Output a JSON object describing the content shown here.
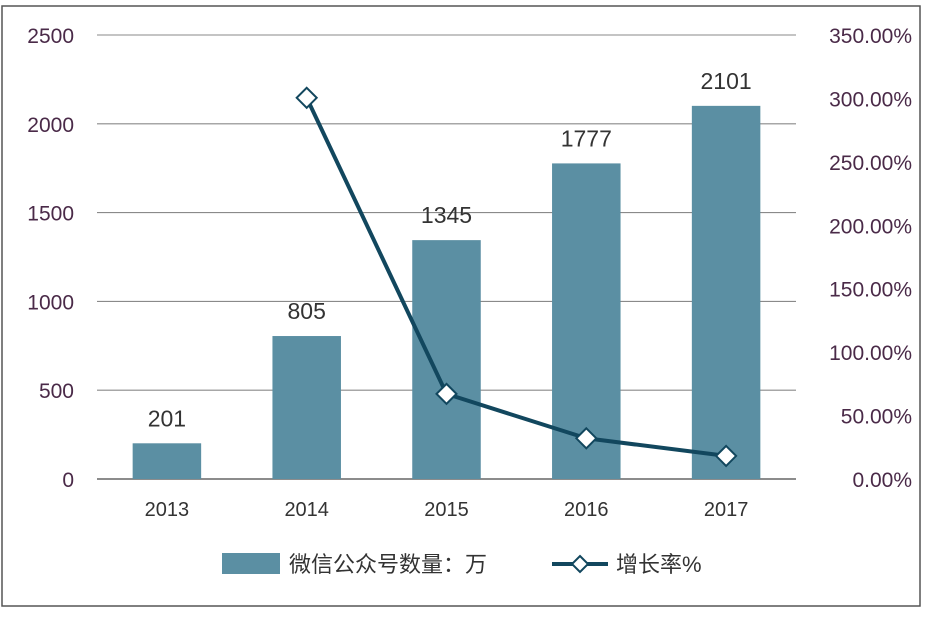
{
  "chart_data": {
    "type": "bar",
    "categories": [
      "2013",
      "2014",
      "2015",
      "2016",
      "2017"
    ],
    "series": [
      {
        "name": "微信公众号数量：万",
        "type": "bar",
        "axis": "left",
        "values": [
          201,
          805,
          1345,
          1777,
          2101
        ],
        "data_labels": [
          "201",
          "805",
          "1345",
          "1777",
          "2101"
        ],
        "color": "#5b8fa3"
      },
      {
        "name": "增长率%",
        "type": "line",
        "axis": "right",
        "values": [
          null,
          300.5,
          67.1,
          32.1,
          18.2
        ],
        "color": "#12475e",
        "marker": "diamond-open"
      }
    ],
    "y_left": {
      "min": 0,
      "max": 2500,
      "ticks": [
        0,
        500,
        1000,
        1500,
        2000,
        2500
      ],
      "tick_labels": [
        "0",
        "500",
        "1000",
        "1500",
        "2000",
        "2500"
      ]
    },
    "y_right": {
      "min": 0,
      "max": 350,
      "ticks": [
        0,
        50,
        100,
        150,
        200,
        250,
        300,
        350
      ],
      "tick_labels": [
        "0.00%",
        "50.00%",
        "100.00%",
        "150.00%",
        "200.00%",
        "250.00%",
        "300.00%",
        "350.00%"
      ]
    },
    "grid": true,
    "legend": "bottom",
    "title": "",
    "xlabel": "",
    "ylabel": ""
  }
}
